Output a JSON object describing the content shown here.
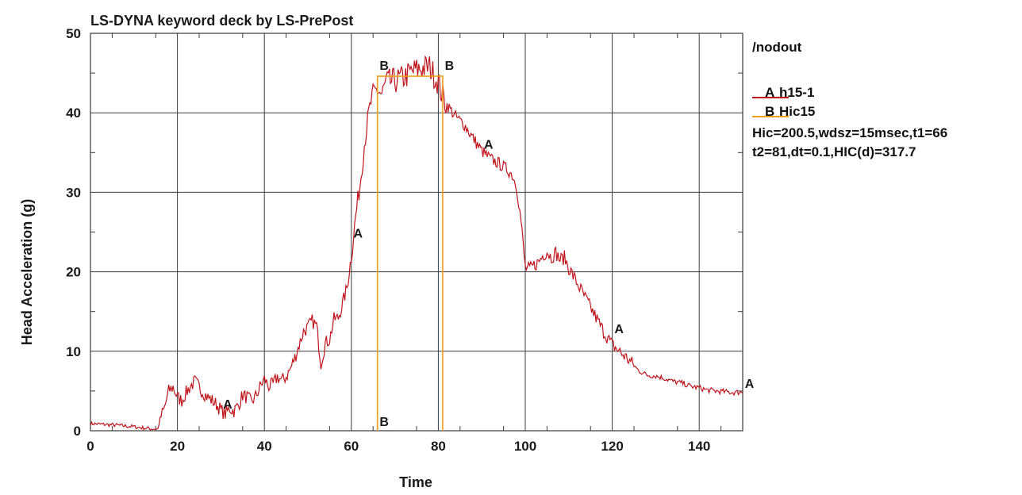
{
  "chart_data": {
    "type": "line",
    "title": "LS-DYNA keyword deck by LS-PrePost",
    "xlabel": "Time",
    "ylabel": "Head Acceleration (g)",
    "xlim": [
      0,
      150
    ],
    "ylim": [
      0,
      50
    ],
    "x_ticks": [
      0,
      20,
      40,
      60,
      80,
      100,
      120,
      140
    ],
    "y_ticks": [
      0,
      10,
      20,
      30,
      40,
      50
    ],
    "x_tick_labels": [
      "0",
      "20",
      "40",
      "60",
      "80",
      "100",
      "120",
      "140"
    ],
    "y_tick_labels": [
      "0",
      "10",
      "20",
      "30",
      "40",
      "50"
    ],
    "grid": true,
    "series": [
      {
        "name": "h15-1",
        "marker_label": "A",
        "color": "#c0141c",
        "x": [
          0,
          3,
          6,
          10,
          13,
          15.5,
          16,
          17,
          18,
          19,
          20,
          21,
          22,
          23,
          24,
          25,
          26,
          27,
          28,
          29,
          30,
          31,
          32,
          33,
          34,
          35,
          36,
          37,
          38,
          39,
          40,
          41,
          42,
          43,
          44,
          45,
          46,
          47,
          48,
          49,
          50,
          51,
          52,
          53,
          54,
          55,
          56,
          57,
          58,
          59,
          60,
          61,
          62,
          63,
          64,
          65,
          66,
          67,
          68,
          70,
          72,
          74,
          76,
          78,
          80,
          81,
          82,
          84,
          86,
          88,
          90,
          92,
          94,
          96,
          97,
          98,
          99,
          100,
          101,
          102,
          103,
          104,
          105,
          106,
          107,
          108,
          109,
          110,
          111,
          112,
          114,
          116,
          118,
          120,
          122,
          124,
          126,
          128,
          130,
          132,
          134,
          136,
          138,
          140,
          142,
          144,
          146,
          148,
          150
        ],
        "y": [
          0.9,
          0.8,
          0.7,
          0.5,
          0.3,
          0.2,
          1.5,
          2.8,
          5,
          5.5,
          4.2,
          3.8,
          4.8,
          5.6,
          6.2,
          5.5,
          4.8,
          4.2,
          3.8,
          3.3,
          2.6,
          2.1,
          2.8,
          2.5,
          3.2,
          4.5,
          4.2,
          3.6,
          4.3,
          5.5,
          6.5,
          5.6,
          5.8,
          6.8,
          6.3,
          6.8,
          7.8,
          9.2,
          10.8,
          12.5,
          13,
          13.8,
          13.2,
          8.5,
          11,
          11.5,
          14,
          14.2,
          16,
          18,
          22,
          27,
          31,
          36,
          40,
          42.5,
          43,
          42.2,
          43.8,
          44,
          44.4,
          45.2,
          45.6,
          45.8,
          43.8,
          42,
          41,
          39.5,
          38.5,
          36.8,
          35.2,
          34.2,
          33.6,
          32.8,
          32.2,
          30.8,
          26.5,
          20.5,
          20.3,
          20.8,
          21.2,
          22,
          22.6,
          21.8,
          22.4,
          21.5,
          21.8,
          20.5,
          19.5,
          18.5,
          16.5,
          14.5,
          12.5,
          10.8,
          9.8,
          8.8,
          7.6,
          7,
          6.9,
          6.6,
          6.2,
          6,
          5.6,
          5.4,
          5.1,
          5.0,
          4.9,
          4.8,
          4.9
        ]
      },
      {
        "name": "Hic15",
        "marker_label": "B",
        "color": "#f0a018",
        "x": [
          66,
          66,
          81,
          81
        ],
        "y": [
          0,
          44.6,
          44.6,
          0
        ]
      }
    ],
    "point_labels": [
      {
        "series": "A",
        "x": 30.5,
        "y": 2.8,
        "text": "A"
      },
      {
        "series": "A",
        "x": 60.5,
        "y": 24.3,
        "text": "A"
      },
      {
        "series": "A",
        "x": 90.5,
        "y": 35.5,
        "text": "A"
      },
      {
        "series": "A",
        "x": 120.5,
        "y": 12.3,
        "text": "A"
      },
      {
        "series": "A",
        "x": 150.5,
        "y": 5.4,
        "text": "A"
      },
      {
        "series": "B",
        "x": 66.5,
        "y": 45.4,
        "text": "B"
      },
      {
        "series": "B",
        "x": 81.5,
        "y": 45.4,
        "text": "B"
      },
      {
        "series": "B",
        "x": 66.5,
        "y": 0.6,
        "text": "B"
      }
    ],
    "legend_position": "right",
    "legend": [
      {
        "letter": "A",
        "name": "h15-1"
      },
      {
        "letter": "B",
        "name": "Hic15"
      }
    ],
    "annotations": {
      "source": "/nodout",
      "hic_line1": "Hic=200.5,wdsz=15msec,t1=66",
      "hic_line2": "t2=81,dt=0.1,HIC(d)=317.7"
    },
    "colors": {
      "grid": "#3a3a3a",
      "frame": "#3a3a3a",
      "text": "#111111"
    }
  }
}
